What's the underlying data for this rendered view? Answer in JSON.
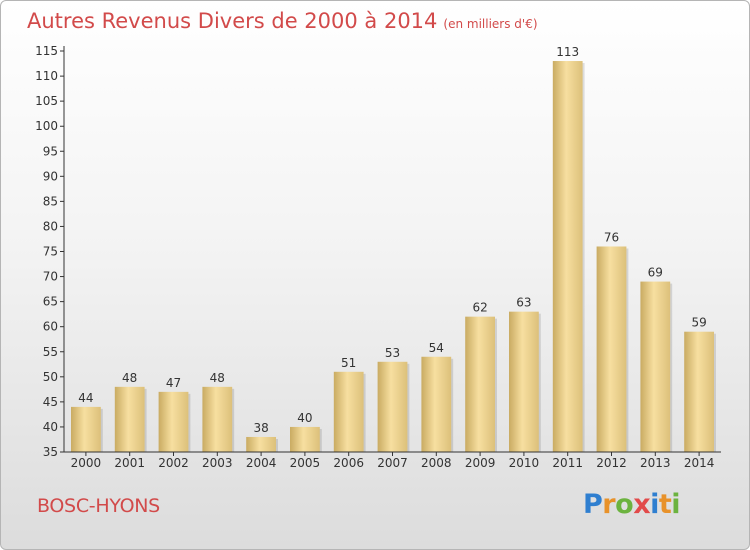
{
  "header": {
    "title": "Autres Revenus Divers de 2000 à 2014",
    "subtitle": "(en milliers d'€)"
  },
  "footer": {
    "commune": "BOSC-HYONS",
    "logo_letters": [
      "P",
      "r",
      "o",
      "x",
      "i",
      "t",
      "i"
    ]
  },
  "colors": {
    "title": "#d24a4a",
    "bar_light": "#f7dfa0",
    "bar_dark": "#c9ab62",
    "axis": "#333333"
  },
  "chart_data": {
    "type": "bar",
    "title": "Autres Revenus Divers de 2000 à 2014",
    "subtitle": "(en milliers d'€)",
    "categories": [
      "2000",
      "2001",
      "2002",
      "2003",
      "2004",
      "2005",
      "2006",
      "2007",
      "2008",
      "2009",
      "2010",
      "2011",
      "2012",
      "2013",
      "2014"
    ],
    "values": [
      44,
      48,
      47,
      48,
      38,
      40,
      51,
      53,
      54,
      62,
      63,
      113,
      76,
      69,
      59
    ],
    "ylim": [
      35,
      115
    ],
    "yticks": [
      35,
      40,
      45,
      50,
      55,
      60,
      65,
      70,
      75,
      80,
      85,
      90,
      95,
      100,
      105,
      110,
      115
    ],
    "grid": false,
    "legend": "none"
  }
}
